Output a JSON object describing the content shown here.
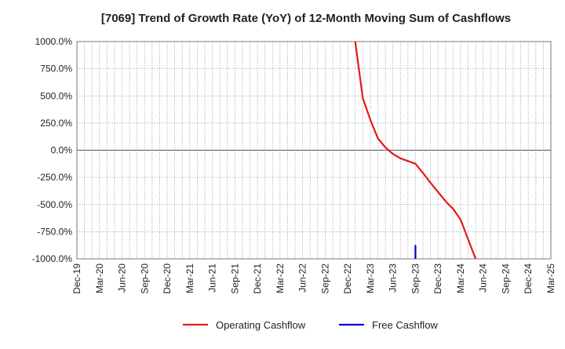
{
  "chart_data": {
    "type": "line",
    "title": "[7069]  Trend of Growth Rate (YoY) of 12-Month Moving Sum of Cashflows",
    "xlabel": "",
    "ylabel": "",
    "ylim": [
      -1000,
      1000
    ],
    "y_ticks": [
      1000,
      750,
      500,
      250,
      0,
      -250,
      -500,
      -750,
      -1000
    ],
    "y_tick_labels": [
      "1000.0%",
      "750.0%",
      "500.0%",
      "250.0%",
      "0.0%",
      "-250.0%",
      "-500.0%",
      "-750.0%",
      "-1000.0%"
    ],
    "x_tick_labels": [
      "Dec-19",
      "Mar-20",
      "Jun-20",
      "Sep-20",
      "Dec-20",
      "Mar-21",
      "Jun-21",
      "Sep-21",
      "Dec-21",
      "Mar-22",
      "Jun-22",
      "Sep-22",
      "Dec-22",
      "Mar-23",
      "Jun-23",
      "Sep-23",
      "Dec-23",
      "Mar-24",
      "Jun-24",
      "Sep-24",
      "Dec-24",
      "Mar-25"
    ],
    "grid": true,
    "legend_position": "bottom",
    "series": [
      {
        "name": "Operating Cashflow",
        "color": "#e31a1c",
        "points": [
          [
            "Jan-23",
            1000
          ],
          [
            "Feb-23",
            480
          ],
          [
            "Mar-23",
            280
          ],
          [
            "Apr-23",
            110
          ],
          [
            "May-23",
            25
          ],
          [
            "Jun-23",
            -35
          ],
          [
            "Jul-23",
            -75
          ],
          [
            "Aug-23",
            -100
          ],
          [
            "Sep-23",
            -125
          ],
          [
            "Oct-23",
            -210
          ],
          [
            "Nov-23",
            -300
          ],
          [
            "Dec-23",
            -385
          ],
          [
            "Jan-24",
            -470
          ],
          [
            "Feb-24",
            -540
          ],
          [
            "Mar-24",
            -640
          ],
          [
            "Apr-24",
            -820
          ],
          [
            "May-24",
            -1000
          ]
        ]
      },
      {
        "name": "Free Cashflow",
        "color": "#0000cc",
        "points": [
          [
            "Sep-23",
            -1000
          ],
          [
            "Sep-23",
            -880
          ],
          [
            "Sep-23",
            -1000
          ]
        ]
      }
    ]
  }
}
